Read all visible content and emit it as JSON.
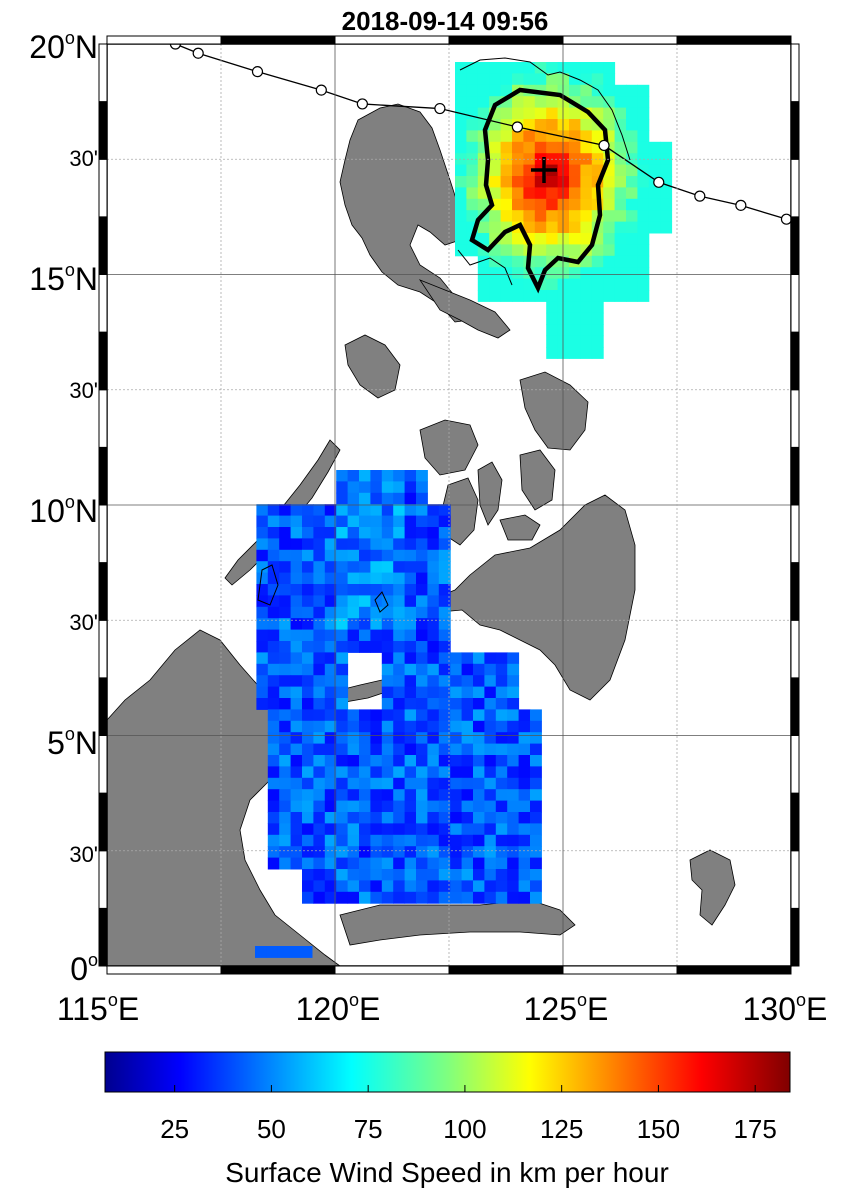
{
  "title": "2018-09-14 09:56",
  "map": {
    "lat_labels_major": [
      {
        "deg": "20",
        "unit": "o",
        "hem": "N"
      },
      {
        "deg": "15",
        "unit": "o",
        "hem": "N"
      },
      {
        "deg": "10",
        "unit": "o",
        "hem": "N"
      },
      {
        "deg": "5",
        "unit": "o",
        "hem": "N"
      },
      {
        "deg": "0",
        "unit": "o",
        "hem": ""
      }
    ],
    "lat_labels_minor": [
      "30'",
      "30'",
      "30'",
      "30'"
    ],
    "lon_labels": [
      {
        "deg": "115",
        "unit": "o",
        "hem": "E"
      },
      {
        "deg": "120",
        "unit": "o",
        "hem": "E"
      },
      {
        "deg": "125",
        "unit": "o",
        "hem": "E"
      },
      {
        "deg": "130",
        "unit": "o",
        "hem": "E"
      }
    ],
    "extent": {
      "lon_min": 115,
      "lon_max": 130,
      "lat_min": 0,
      "lat_max": 20
    },
    "land_color": "#808080",
    "storm_center": {
      "lon": 124.8,
      "lat": 18.1
    },
    "storm_track": [
      {
        "lon": 116.5,
        "lat": 20.0
      },
      {
        "lon": 117.0,
        "lat": 19.8
      },
      {
        "lon": 118.3,
        "lat": 19.4
      },
      {
        "lon": 119.7,
        "lat": 19.0
      },
      {
        "lon": 120.6,
        "lat": 18.7
      },
      {
        "lon": 122.3,
        "lat": 18.6
      },
      {
        "lon": 124.0,
        "lat": 18.2
      },
      {
        "lon": 125.9,
        "lat": 17.8
      },
      {
        "lon": 127.1,
        "lat": 17.0
      },
      {
        "lon": 128.0,
        "lat": 16.7
      },
      {
        "lon": 128.9,
        "lat": 16.5
      },
      {
        "lon": 129.9,
        "lat": 16.2
      }
    ]
  },
  "colorbar": {
    "ticks": [
      "25",
      "50",
      "75",
      "100",
      "125",
      "150",
      "175"
    ],
    "tick_values": [
      25,
      50,
      75,
      100,
      125,
      150,
      175
    ],
    "range": [
      7,
      184
    ],
    "label": "Surface Wind Speed in km per hour",
    "colormap": "jet"
  }
}
